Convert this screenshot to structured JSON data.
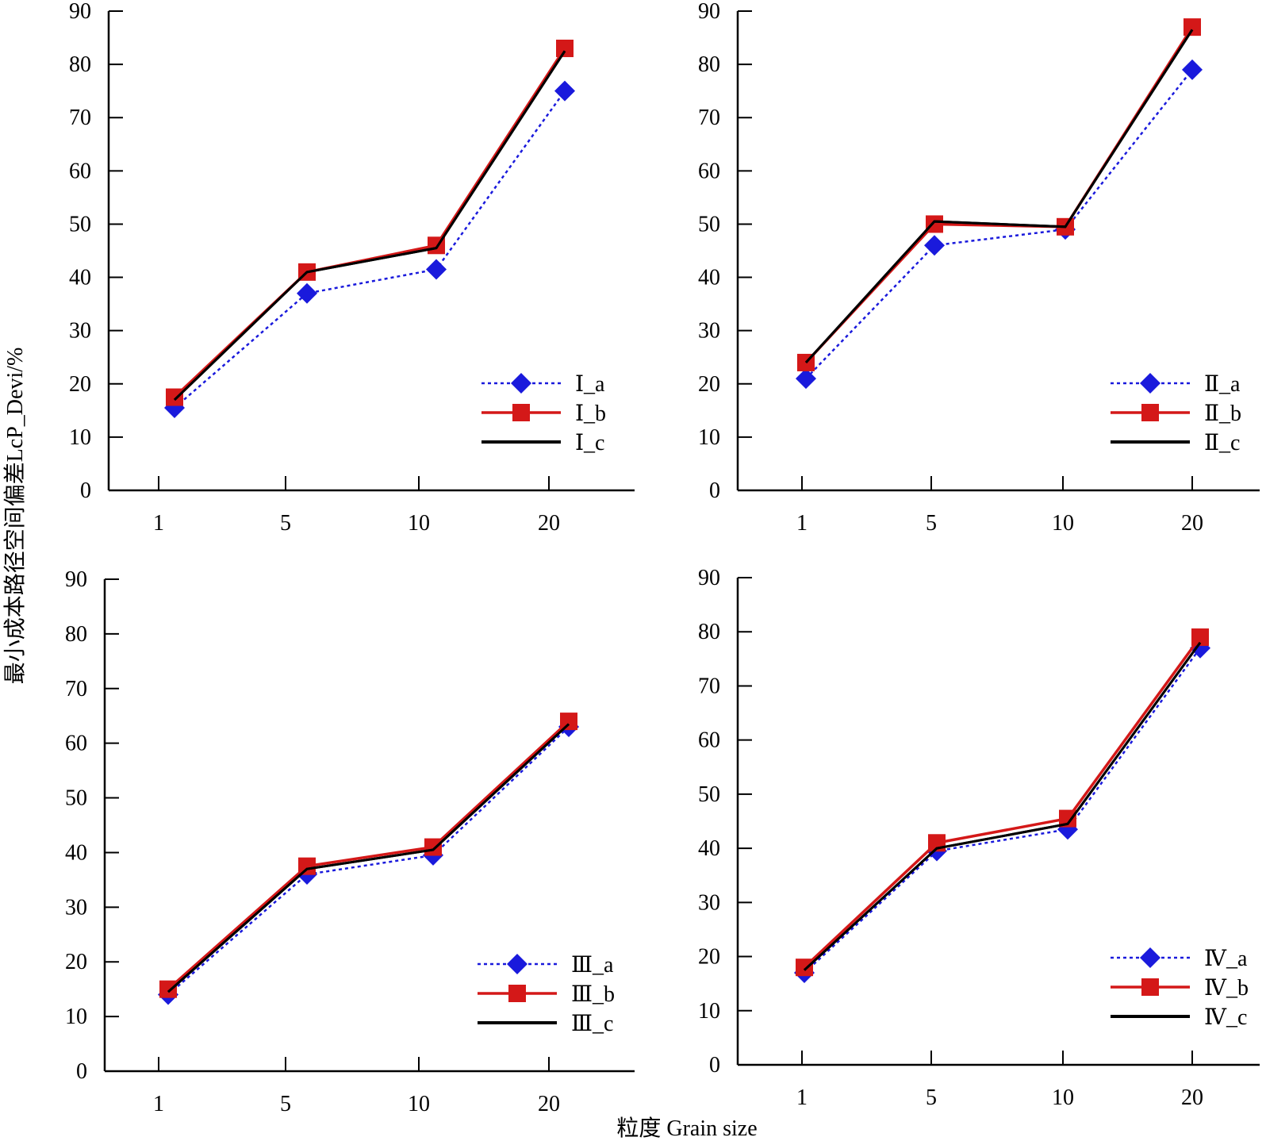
{
  "figure": {
    "ylabel": "最小成本路径空间偏差LcP_Devi/%",
    "xlabel": "粒度 Grain size"
  },
  "colors": {
    "a": "#1a1adc",
    "b": "#d41818",
    "c": "#000000"
  },
  "chart_data": [
    {
      "type": "line",
      "panel": "top-left",
      "categories": [
        "1",
        "5",
        "10",
        "20"
      ],
      "ylim": [
        0,
        90
      ],
      "yticks": [
        "0",
        "10",
        "20",
        "30",
        "40",
        "50",
        "60",
        "70",
        "80",
        "90"
      ],
      "grid": false,
      "legend_position": "bottom-right",
      "series": [
        {
          "name": "Ⅰ_a",
          "values": [
            15.5,
            37,
            41.5,
            75
          ],
          "marker": "diamond",
          "line": "dotted"
        },
        {
          "name": "Ⅰ_b",
          "values": [
            17.5,
            41,
            46,
            83
          ],
          "marker": "square",
          "line": "solid"
        },
        {
          "name": "Ⅰ_c",
          "values": [
            17,
            41,
            45.5,
            82.5
          ],
          "marker": "none",
          "line": "solid"
        }
      ]
    },
    {
      "type": "line",
      "panel": "top-right",
      "categories": [
        "1",
        "5",
        "10",
        "20"
      ],
      "ylim": [
        0,
        90
      ],
      "yticks": [
        "0",
        "10",
        "20",
        "30",
        "40",
        "50",
        "60",
        "70",
        "80",
        "90"
      ],
      "grid": false,
      "legend_position": "bottom-right",
      "series": [
        {
          "name": "Ⅱ_a",
          "values": [
            21,
            46,
            49,
            79
          ],
          "marker": "diamond",
          "line": "dotted"
        },
        {
          "name": "Ⅱ_b",
          "values": [
            24,
            50,
            49.5,
            87
          ],
          "marker": "square",
          "line": "solid"
        },
        {
          "name": "Ⅱ_c",
          "values": [
            24,
            50.5,
            49.5,
            86.5
          ],
          "marker": "none",
          "line": "solid"
        }
      ]
    },
    {
      "type": "line",
      "panel": "bottom-left",
      "categories": [
        "1",
        "5",
        "10",
        "20"
      ],
      "ylim": [
        0,
        90
      ],
      "yticks": [
        "0",
        "10",
        "20",
        "30",
        "40",
        "50",
        "60",
        "70",
        "80",
        "90"
      ],
      "grid": false,
      "legend_position": "bottom-right",
      "series": [
        {
          "name": "Ⅲ_a",
          "values": [
            14,
            36,
            39.5,
            63
          ],
          "marker": "diamond",
          "line": "dotted"
        },
        {
          "name": "Ⅲ_b",
          "values": [
            15,
            37.5,
            41,
            64
          ],
          "marker": "square",
          "line": "solid"
        },
        {
          "name": "Ⅲ_c",
          "values": [
            14.5,
            37,
            40.5,
            63.5
          ],
          "marker": "none",
          "line": "solid"
        }
      ]
    },
    {
      "type": "line",
      "panel": "bottom-right",
      "categories": [
        "1",
        "5",
        "10",
        "20"
      ],
      "ylim": [
        0,
        90
      ],
      "yticks": [
        "0",
        "10",
        "20",
        "30",
        "40",
        "50",
        "60",
        "70",
        "80",
        "90"
      ],
      "grid": false,
      "legend_position": "bottom-right",
      "series": [
        {
          "name": "Ⅳ_a",
          "values": [
            17,
            39.5,
            43.5,
            77
          ],
          "marker": "diamond",
          "line": "dotted"
        },
        {
          "name": "Ⅳ_b",
          "values": [
            18,
            41,
            45.5,
            79
          ],
          "marker": "square",
          "line": "solid"
        },
        {
          "name": "Ⅳ_c",
          "values": [
            17.5,
            40,
            44.5,
            78
          ],
          "marker": "none",
          "line": "solid"
        }
      ]
    }
  ]
}
